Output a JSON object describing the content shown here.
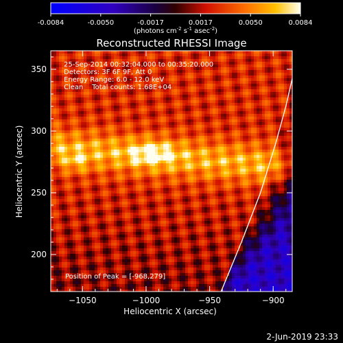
{
  "chart_data": {
    "type": "heatmap",
    "title": "Reconstructed RHESSI Image",
    "colorbar": {
      "ticks": [
        "-0.0084",
        "-0.0050",
        "-0.0017",
        "0.0017",
        "0.0050",
        "0.0084"
      ],
      "range": [
        -0.0084,
        0.0084
      ],
      "unit_prefix": "(photons cm",
      "unit_exp1": "-2",
      "unit_mid": " s",
      "unit_exp2": "-1",
      "unit_mid2": " asec",
      "unit_exp3": "-2",
      "unit_suffix": ")"
    },
    "xlabel": "Heliocentric X (arcsec)",
    "ylabel": "Heliocentric Y (arcsec)",
    "xlim": [
      -1075,
      -885
    ],
    "ylim": [
      170,
      365
    ],
    "xticks": [
      {
        "value": -1050,
        "label": "−1050"
      },
      {
        "value": -1000,
        "label": "−1000"
      },
      {
        "value": -950,
        "label": "−950"
      },
      {
        "value": -900,
        "label": "−900"
      }
    ],
    "yticks": [
      {
        "value": 200,
        "label": "200"
      },
      {
        "value": 250,
        "label": "250"
      },
      {
        "value": 300,
        "label": "300"
      },
      {
        "value": 350,
        "label": "350"
      }
    ],
    "annotations": {
      "line1": "25-Sep-2014 00:32:04.000 to 00:35:20.000",
      "line2": "Detectors: 3F 6F 9F, Att 0",
      "line3": "Energy Range: 6.0 - 12.0 keV",
      "line4": "Clean    Total counts: 1.68E+04"
    },
    "peak_text": "Position of Peak = [-968,279]",
    "peak": {
      "x": -968,
      "y": 279
    },
    "limb": [
      [
        -941,
        170
      ],
      [
        -925,
        210
      ],
      [
        -910,
        250
      ],
      [
        -898,
        290
      ],
      [
        -890,
        320
      ],
      [
        -880,
        365
      ]
    ],
    "grid": false
  },
  "footer": {
    "date": "2-Jun-2019 23:33"
  }
}
